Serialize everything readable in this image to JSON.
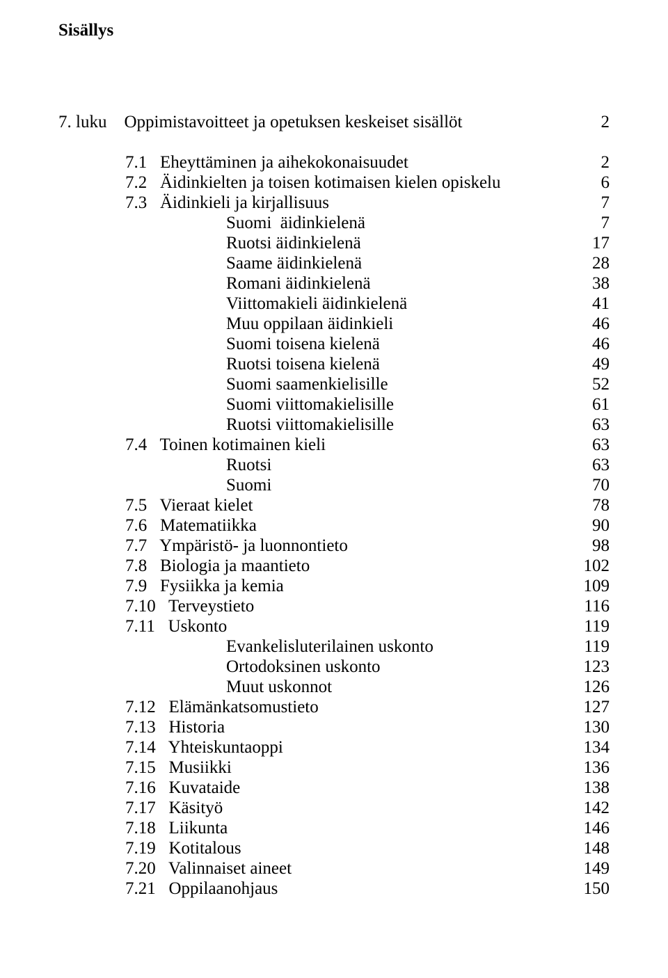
{
  "title": "Sisällys",
  "entries": [
    {
      "type": "blank"
    },
    {
      "label": "7. luku",
      "text": "Oppimistavoitteet ja opetuksen keskeiset sisällöt",
      "page": "2",
      "indent": 0,
      "chapter": true
    },
    {
      "type": "blank"
    },
    {
      "label": "7.1",
      "text": "Eheyttäminen ja aihekokonaisuudet",
      "page": "2",
      "indent": 1
    },
    {
      "label": "7.2",
      "text": "Äidinkielten ja toisen kotimaisen kielen opiskelu",
      "page": "6",
      "indent": 1
    },
    {
      "label": "7.3",
      "text": "Äidinkieli ja kirjallisuus",
      "page": "7",
      "indent": 1
    },
    {
      "text": "Suomi  äidinkielenä",
      "page": "7",
      "indent": 3
    },
    {
      "text": "Ruotsi äidinkielenä",
      "page": "17",
      "indent": 3
    },
    {
      "text": "Saame äidinkielenä",
      "page": "28",
      "indent": 3
    },
    {
      "text": "Romani äidinkielenä",
      "page": "38",
      "indent": 3
    },
    {
      "text": "Viittomakieli äidinkielenä",
      "page": "41",
      "indent": 3
    },
    {
      "text": "Muu oppilaan äidinkieli",
      "page": "46",
      "indent": 3
    },
    {
      "text": "Suomi toisena kielenä",
      "page": "46",
      "indent": 3
    },
    {
      "text": "Ruotsi toisena kielenä",
      "page": "49",
      "indent": 3
    },
    {
      "text": "Suomi saamenkielisille",
      "page": "52",
      "indent": 3
    },
    {
      "text": "Suomi viittomakielisille",
      "page": "61",
      "indent": 3
    },
    {
      "text": "Ruotsi viittomakielisille",
      "page": "63",
      "indent": 3
    },
    {
      "label": "7.4",
      "text": "Toinen kotimainen kieli",
      "page": "63",
      "indent": 1
    },
    {
      "text": "Ruotsi",
      "page": "63",
      "indent": 3
    },
    {
      "text": "Suomi",
      "page": "70",
      "indent": 3
    },
    {
      "label": "7.5",
      "text": "Vieraat kielet",
      "page": "78",
      "indent": 1
    },
    {
      "label": "7.6",
      "text": "Matematiikka",
      "page": "90",
      "indent": 1
    },
    {
      "label": "7.7",
      "text": "Ympäristö- ja luonnontieto",
      "page": "98",
      "indent": 1
    },
    {
      "label": "7.8",
      "text": "Biologia ja maantieto",
      "page": "102",
      "indent": 1
    },
    {
      "label": "7.9",
      "text": "Fysiikka ja kemia",
      "page": "109",
      "indent": 1
    },
    {
      "label": "7.10",
      "text": "Terveystieto",
      "page": "116",
      "indent": 1,
      "wide": true
    },
    {
      "label": "7.11",
      "text": "Uskonto",
      "page": "119",
      "indent": 1,
      "wide": true
    },
    {
      "text": "Evankelisluterilainen uskonto",
      "page": "119",
      "indent": 3
    },
    {
      "text": "Ortodoksinen uskonto",
      "page": "123",
      "indent": 3
    },
    {
      "text": "Muut uskonnot",
      "page": "126",
      "indent": 3
    },
    {
      "label": "7.12",
      "text": "Elämänkatsomustieto",
      "page": "127",
      "indent": 1,
      "wide": true
    },
    {
      "label": "7.13",
      "text": "Historia",
      "page": "130",
      "indent": 1,
      "wide": true
    },
    {
      "label": "7.14",
      "text": "Yhteiskuntaoppi",
      "page": "134",
      "indent": 1,
      "wide": true
    },
    {
      "label": "7.15",
      "text": "Musiikki",
      "page": "136",
      "indent": 1,
      "wide": true
    },
    {
      "label": "7.16",
      "text": "Kuvataide",
      "page": "138",
      "indent": 1,
      "wide": true
    },
    {
      "label": "7.17",
      "text": "Käsityö",
      "page": "142",
      "indent": 1,
      "wide": true
    },
    {
      "label": "7.18",
      "text": "Liikunta",
      "page": "146",
      "indent": 1,
      "wide": true
    },
    {
      "label": "7.19",
      "text": "Kotitalous",
      "page": "148",
      "indent": 1,
      "wide": true
    },
    {
      "label": "7.20",
      "text": "Valinnaiset aineet",
      "page": "149",
      "indent": 1,
      "wide": true
    },
    {
      "label": "7.21",
      "text": "Oppilaanohjaus",
      "page": "150",
      "indent": 1,
      "wide": true
    }
  ]
}
